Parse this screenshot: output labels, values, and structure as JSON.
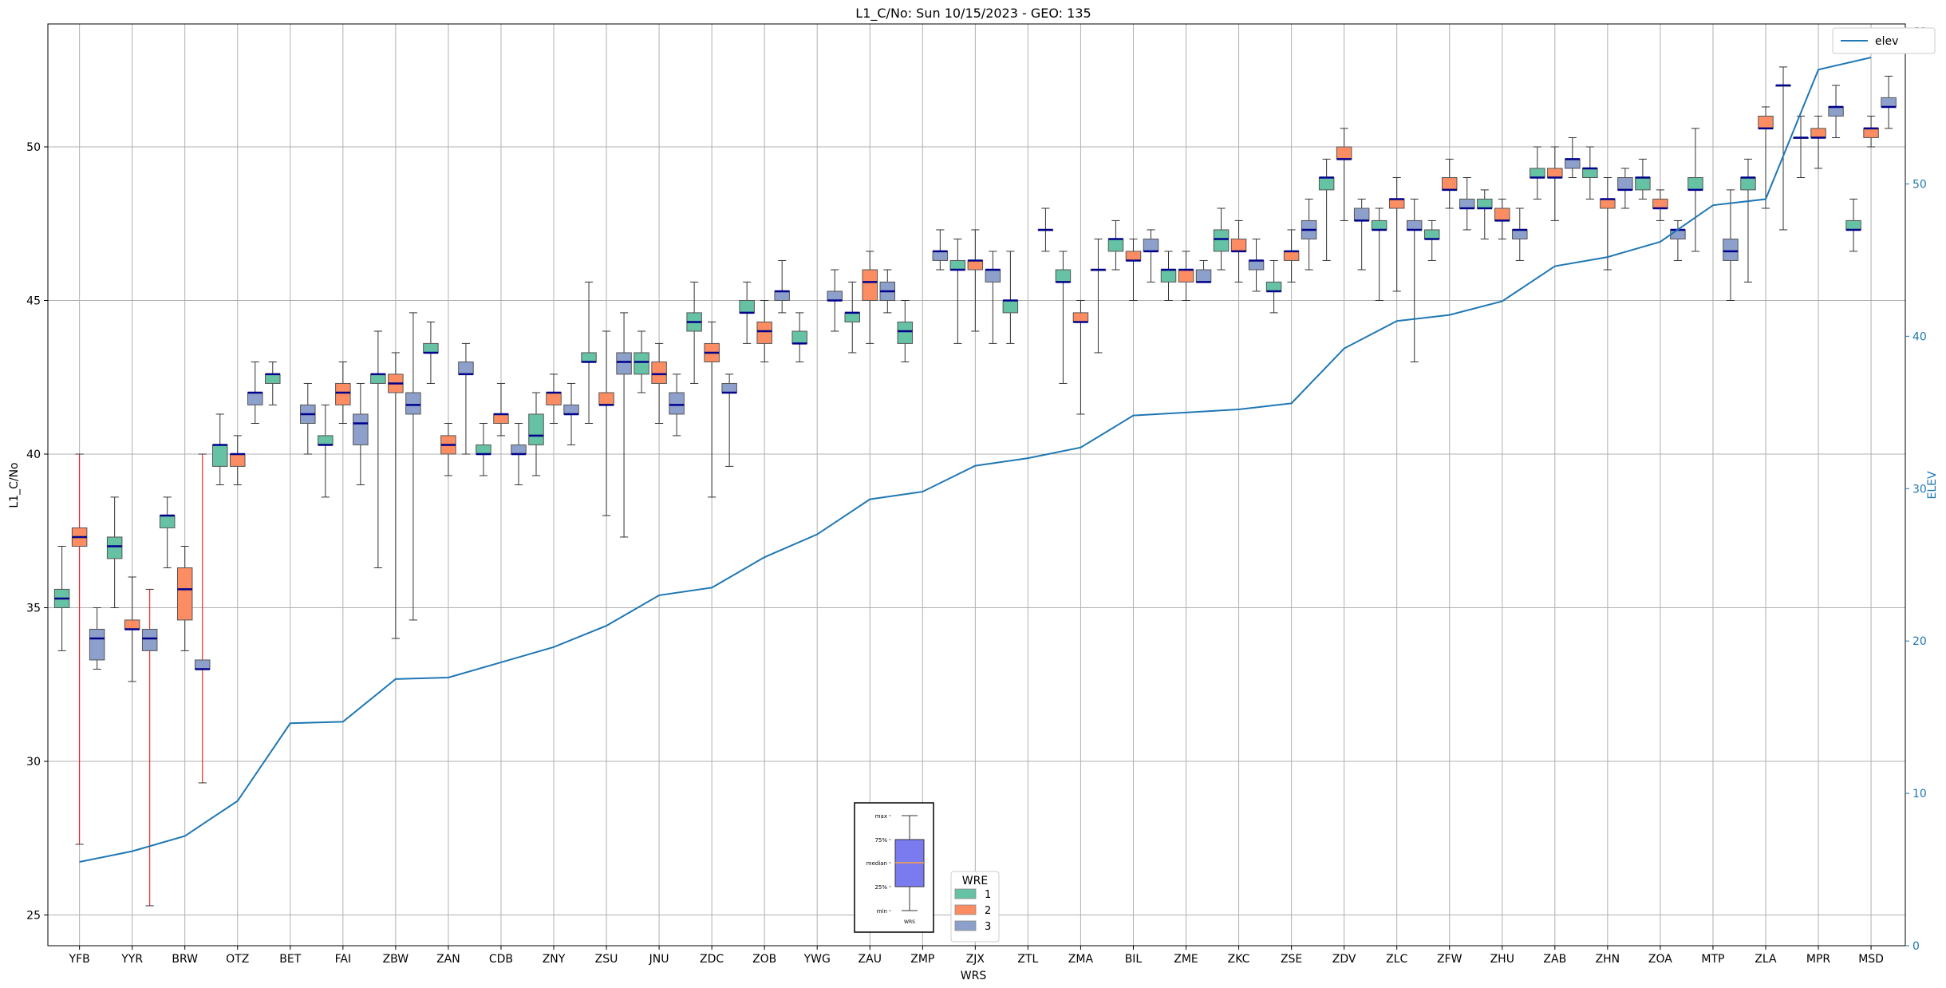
{
  "chart_data": {
    "type": "box",
    "title": "L1_C/No: Sun 10/15/2023 - GEO: 135",
    "xlabel": "WRS",
    "ylabel": "L1_C/No",
    "y2label": "ELEV",
    "ylim": [
      24,
      54
    ],
    "y2lim": [
      0,
      60.5
    ],
    "yticks": [
      25,
      30,
      35,
      40,
      45,
      50
    ],
    "y2ticks": [
      0,
      10,
      20,
      30,
      40,
      50,
      60
    ],
    "grid": true,
    "categories": [
      "YFB",
      "YYR",
      "BRW",
      "OTZ",
      "BET",
      "FAI",
      "ZBW",
      "ZAN",
      "CDB",
      "ZNY",
      "ZSU",
      "JNU",
      "ZDC",
      "ZOB",
      "YWG",
      "ZAU",
      "ZMP",
      "ZJX",
      "ZTL",
      "ZMA",
      "BIL",
      "ZME",
      "ZKC",
      "ZSE",
      "ZDV",
      "ZLC",
      "ZFW",
      "ZHU",
      "ZAB",
      "ZHN",
      "ZOA",
      "MTP",
      "ZLA",
      "MPR",
      "MSD"
    ],
    "legend": {
      "title": "WRE",
      "labels": [
        "1",
        "2",
        "3"
      ],
      "position": "bottom-center"
    },
    "colors": {
      "1": "#66c2a5",
      "2": "#fc8d62",
      "3": "#8da0cb",
      "median": "#00008b",
      "elev": "#1f77b4",
      "red_whisker": "#ff0000"
    },
    "series": [
      {
        "name": "1",
        "boxes": [
          {
            "x": "YFB",
            "min": 33.6,
            "q1": 35.0,
            "median": 35.3,
            "q3": 35.6,
            "max": 37.0
          },
          {
            "x": "YYR",
            "min": 35.0,
            "q1": 36.6,
            "median": 37.0,
            "q3": 37.3,
            "max": 38.6
          },
          {
            "x": "BRW",
            "min": 36.3,
            "q1": 37.6,
            "median": 38.0,
            "q3": 38.0,
            "max": 38.6
          },
          {
            "x": "OTZ",
            "min": 39.0,
            "q1": 39.6,
            "median": 40.3,
            "q3": 40.3,
            "max": 41.3
          },
          {
            "x": "BET",
            "min": 41.6,
            "q1": 42.3,
            "median": 42.6,
            "q3": 42.6,
            "max": 43.0
          },
          {
            "x": "FAI",
            "min": 38.6,
            "q1": 40.3,
            "median": 40.3,
            "q3": 40.6,
            "max": 41.6
          },
          {
            "x": "ZBW",
            "min": 36.3,
            "q1": 42.3,
            "median": 42.6,
            "q3": 42.6,
            "max": 44.0
          },
          {
            "x": "ZAN",
            "min": 42.3,
            "q1": 43.3,
            "median": 43.3,
            "q3": 43.6,
            "max": 44.3
          },
          {
            "x": "CDB",
            "min": 39.3,
            "q1": 40.0,
            "median": 40.0,
            "q3": 40.3,
            "max": 41.0
          },
          {
            "x": "ZNY",
            "min": 39.3,
            "q1": 40.3,
            "median": 40.6,
            "q3": 41.3,
            "max": 42.0
          },
          {
            "x": "ZSU",
            "min": 41.0,
            "q1": 43.0,
            "median": 43.0,
            "q3": 43.3,
            "max": 45.6
          },
          {
            "x": "JNU",
            "min": 42.0,
            "q1": 42.6,
            "median": 43.0,
            "q3": 43.3,
            "max": 44.0
          },
          {
            "x": "ZDC",
            "min": 42.3,
            "q1": 44.0,
            "median": 44.3,
            "q3": 44.6,
            "max": 45.6
          },
          {
            "x": "ZOB",
            "min": 43.6,
            "q1": 44.6,
            "median": 44.6,
            "q3": 45.0,
            "max": 45.6
          },
          {
            "x": "YWG",
            "min": 43.0,
            "q1": 43.6,
            "median": 43.6,
            "q3": 44.0,
            "max": 44.6
          },
          {
            "x": "ZAU",
            "min": 43.3,
            "q1": 44.3,
            "median": 44.6,
            "q3": 44.6,
            "max": 45.6
          },
          {
            "x": "ZMP",
            "min": 43.0,
            "q1": 43.6,
            "median": 44.0,
            "q3": 44.3,
            "max": 45.0
          },
          {
            "x": "ZJX",
            "min": 43.6,
            "q1": 46.0,
            "median": 46.0,
            "q3": 46.3,
            "max": 47.0
          },
          {
            "x": "ZTL",
            "min": 43.6,
            "q1": 44.6,
            "median": 45.0,
            "q3": 45.0,
            "max": 46.6
          },
          {
            "x": "ZMA",
            "min": 42.3,
            "q1": 45.6,
            "median": 45.6,
            "q3": 46.0,
            "max": 46.6
          },
          {
            "x": "BIL",
            "min": 46.0,
            "q1": 46.6,
            "median": 47.0,
            "q3": 47.0,
            "max": 47.6
          },
          {
            "x": "ZME",
            "min": 45.0,
            "q1": 45.6,
            "median": 46.0,
            "q3": 46.0,
            "max": 46.6
          },
          {
            "x": "ZKC",
            "min": 46.0,
            "q1": 46.6,
            "median": 47.0,
            "q3": 47.3,
            "max": 48.0
          },
          {
            "x": "ZSE",
            "min": 44.6,
            "q1": 45.3,
            "median": 45.3,
            "q3": 45.6,
            "max": 46.3
          },
          {
            "x": "ZDV",
            "min": 46.3,
            "q1": 48.6,
            "median": 49.0,
            "q3": 49.0,
            "max": 49.6
          },
          {
            "x": "ZLC",
            "min": 45.0,
            "q1": 47.3,
            "median": 47.3,
            "q3": 47.6,
            "max": 48.0
          },
          {
            "x": "ZFW",
            "min": 46.3,
            "q1": 47.0,
            "median": 47.0,
            "q3": 47.3,
            "max": 47.6
          },
          {
            "x": "ZHU",
            "min": 47.0,
            "q1": 48.0,
            "median": 48.0,
            "q3": 48.3,
            "max": 48.6
          },
          {
            "x": "ZAB",
            "min": 48.3,
            "q1": 49.0,
            "median": 49.0,
            "q3": 49.3,
            "max": 50.0
          },
          {
            "x": "ZHN",
            "min": 48.3,
            "q1": 49.0,
            "median": 49.3,
            "q3": 49.3,
            "max": 50.0
          },
          {
            "x": "ZOA",
            "min": 48.3,
            "q1": 48.6,
            "median": 49.0,
            "q3": 49.0,
            "max": 49.6
          },
          {
            "x": "MTP",
            "min": 46.6,
            "q1": 48.6,
            "median": 48.6,
            "q3": 49.0,
            "max": 50.6
          },
          {
            "x": "ZLA",
            "min": 45.6,
            "q1": 48.6,
            "median": 49.0,
            "q3": 49.0,
            "max": 49.6
          },
          {
            "x": "MPR",
            "min": 49.0,
            "q1": 50.3,
            "median": 50.3,
            "q3": 50.3,
            "max": 51.0
          },
          {
            "x": "MSD",
            "min": 46.6,
            "q1": 47.3,
            "median": 47.3,
            "q3": 47.6,
            "max": 48.3
          }
        ]
      },
      {
        "name": "2",
        "boxes": [
          {
            "x": "YFB",
            "min": 27.3,
            "q1": 37.0,
            "median": 37.3,
            "q3": 37.6,
            "max": 40.0,
            "whisker_color": "red"
          },
          {
            "x": "YYR",
            "min": 32.6,
            "q1": 34.3,
            "median": 34.3,
            "q3": 34.6,
            "max": 36.0
          },
          {
            "x": "BRW",
            "min": 33.6,
            "q1": 34.6,
            "median": 35.6,
            "q3": 36.3,
            "max": 37.0
          },
          {
            "x": "OTZ",
            "min": 39.0,
            "q1": 39.6,
            "median": 40.0,
            "q3": 40.0,
            "max": 40.6
          },
          {
            "x": "FAI",
            "min": 41.0,
            "q1": 41.6,
            "median": 42.0,
            "q3": 42.3,
            "max": 43.0
          },
          {
            "x": "ZBW",
            "min": 34.0,
            "q1": 42.0,
            "median": 42.3,
            "q3": 42.6,
            "max": 43.3
          },
          {
            "x": "ZAN",
            "min": 39.3,
            "q1": 40.0,
            "median": 40.3,
            "q3": 40.6,
            "max": 41.0
          },
          {
            "x": "CDB",
            "min": 40.6,
            "q1": 41.0,
            "median": 41.3,
            "q3": 41.3,
            "max": 42.3
          },
          {
            "x": "ZNY",
            "min": 41.0,
            "q1": 41.6,
            "median": 42.0,
            "q3": 42.0,
            "max": 42.6
          },
          {
            "x": "ZSU",
            "min": 38.0,
            "q1": 41.6,
            "median": 41.6,
            "q3": 42.0,
            "max": 44.0
          },
          {
            "x": "JNU",
            "min": 41.0,
            "q1": 42.3,
            "median": 42.6,
            "q3": 43.0,
            "max": 43.6
          },
          {
            "x": "ZDC",
            "min": 38.6,
            "q1": 43.0,
            "median": 43.3,
            "q3": 43.6,
            "max": 44.3
          },
          {
            "x": "ZOB",
            "min": 43.0,
            "q1": 43.6,
            "median": 44.0,
            "q3": 44.3,
            "max": 45.0
          },
          {
            "x": "ZAU",
            "min": 43.6,
            "q1": 45.0,
            "median": 45.6,
            "q3": 46.0,
            "max": 46.6
          },
          {
            "x": "ZJX",
            "min": 44.0,
            "q1": 46.0,
            "median": 46.3,
            "q3": 46.3,
            "max": 47.3
          },
          {
            "x": "ZMA",
            "min": 41.3,
            "q1": 44.3,
            "median": 44.3,
            "q3": 44.6,
            "max": 45.0
          },
          {
            "x": "BIL",
            "min": 45.0,
            "q1": 46.3,
            "median": 46.3,
            "q3": 46.6,
            "max": 47.0
          },
          {
            "x": "ZME",
            "min": 45.0,
            "q1": 45.6,
            "median": 46.0,
            "q3": 46.0,
            "max": 46.6
          },
          {
            "x": "ZKC",
            "min": 45.6,
            "q1": 46.6,
            "median": 46.6,
            "q3": 47.0,
            "max": 47.6
          },
          {
            "x": "ZSE",
            "min": 45.6,
            "q1": 46.3,
            "median": 46.6,
            "q3": 46.6,
            "max": 47.3
          },
          {
            "x": "ZDV",
            "min": 47.6,
            "q1": 49.6,
            "median": 49.6,
            "q3": 50.0,
            "max": 50.6
          },
          {
            "x": "ZLC",
            "min": 45.3,
            "q1": 48.0,
            "median": 48.3,
            "q3": 48.3,
            "max": 49.0
          },
          {
            "x": "ZFW",
            "min": 48.0,
            "q1": 48.6,
            "median": 48.6,
            "q3": 49.0,
            "max": 49.6
          },
          {
            "x": "ZHU",
            "min": 47.0,
            "q1": 47.6,
            "median": 47.6,
            "q3": 48.0,
            "max": 48.3
          },
          {
            "x": "ZAB",
            "min": 47.6,
            "q1": 49.0,
            "median": 49.0,
            "q3": 49.3,
            "max": 50.0
          },
          {
            "x": "ZHN",
            "min": 46.0,
            "q1": 48.0,
            "median": 48.3,
            "q3": 48.3,
            "max": 49.0
          },
          {
            "x": "ZOA",
            "min": 47.6,
            "q1": 48.0,
            "median": 48.0,
            "q3": 48.3,
            "max": 48.6
          },
          {
            "x": "ZLA",
            "min": 48.0,
            "q1": 50.6,
            "median": 50.6,
            "q3": 51.0,
            "max": 51.3
          },
          {
            "x": "MPR",
            "min": 49.3,
            "q1": 50.3,
            "median": 50.3,
            "q3": 50.6,
            "max": 51.0
          },
          {
            "x": "MSD",
            "min": 50.0,
            "q1": 50.3,
            "median": 50.6,
            "q3": 50.6,
            "max": 51.0
          }
        ]
      },
      {
        "name": "3",
        "boxes": [
          {
            "x": "YFB",
            "min": 33.0,
            "q1": 33.3,
            "median": 34.0,
            "q3": 34.3,
            "max": 35.0
          },
          {
            "x": "YYR",
            "min": 25.3,
            "q1": 33.6,
            "median": 34.0,
            "q3": 34.3,
            "max": 35.6,
            "whisker_color": "red"
          },
          {
            "x": "BRW",
            "min": 29.3,
            "q1": 33.0,
            "median": 33.0,
            "q3": 33.3,
            "max": 40.0,
            "whisker_color": "red"
          },
          {
            "x": "OTZ",
            "min": 41.0,
            "q1": 41.6,
            "median": 42.0,
            "q3": 42.0,
            "max": 43.0
          },
          {
            "x": "BET",
            "min": 40.0,
            "q1": 41.0,
            "median": 41.3,
            "q3": 41.6,
            "max": 42.3
          },
          {
            "x": "FAI",
            "min": 39.0,
            "q1": 40.3,
            "median": 41.0,
            "q3": 41.3,
            "max": 42.3
          },
          {
            "x": "ZBW",
            "min": 34.6,
            "q1": 41.3,
            "median": 41.6,
            "q3": 42.0,
            "max": 44.6
          },
          {
            "x": "ZAN",
            "min": 40.0,
            "q1": 42.6,
            "median": 42.6,
            "q3": 43.0,
            "max": 43.6
          },
          {
            "x": "CDB",
            "min": 39.0,
            "q1": 40.0,
            "median": 40.0,
            "q3": 40.3,
            "max": 41.0
          },
          {
            "x": "ZNY",
            "min": 40.3,
            "q1": 41.3,
            "median": 41.3,
            "q3": 41.6,
            "max": 42.3
          },
          {
            "x": "ZSU",
            "min": 37.3,
            "q1": 42.6,
            "median": 43.0,
            "q3": 43.3,
            "max": 44.6
          },
          {
            "x": "JNU",
            "min": 40.6,
            "q1": 41.3,
            "median": 41.6,
            "q3": 42.0,
            "max": 42.6
          },
          {
            "x": "ZDC",
            "min": 39.6,
            "q1": 42.0,
            "median": 42.0,
            "q3": 42.3,
            "max": 42.6
          },
          {
            "x": "ZOB",
            "min": 44.6,
            "q1": 45.0,
            "median": 45.3,
            "q3": 45.3,
            "max": 46.3
          },
          {
            "x": "YWG",
            "min": 44.0,
            "q1": 45.0,
            "median": 45.0,
            "q3": 45.3,
            "max": 46.0
          },
          {
            "x": "ZAU",
            "min": 44.6,
            "q1": 45.0,
            "median": 45.3,
            "q3": 45.6,
            "max": 46.0
          },
          {
            "x": "ZMP",
            "min": 46.0,
            "q1": 46.3,
            "median": 46.6,
            "q3": 46.6,
            "max": 47.3
          },
          {
            "x": "ZJX",
            "min": 43.6,
            "q1": 45.6,
            "median": 46.0,
            "q3": 46.0,
            "max": 46.6
          },
          {
            "x": "ZTL",
            "min": 46.6,
            "q1": 47.3,
            "median": 47.3,
            "q3": 47.3,
            "max": 48.0
          },
          {
            "x": "ZMA",
            "min": 43.3,
            "q1": 46.0,
            "median": 46.0,
            "q3": 46.0,
            "max": 47.0
          },
          {
            "x": "BIL",
            "min": 45.6,
            "q1": 46.6,
            "median": 46.6,
            "q3": 47.0,
            "max": 47.3
          },
          {
            "x": "ZME",
            "min": 45.6,
            "q1": 45.6,
            "median": 45.6,
            "q3": 46.0,
            "max": 46.3
          },
          {
            "x": "ZKC",
            "min": 45.3,
            "q1": 46.0,
            "median": 46.3,
            "q3": 46.3,
            "max": 47.0
          },
          {
            "x": "ZSE",
            "min": 46.0,
            "q1": 47.0,
            "median": 47.3,
            "q3": 47.6,
            "max": 48.3
          },
          {
            "x": "ZDV",
            "min": 46.0,
            "q1": 47.6,
            "median": 47.6,
            "q3": 48.0,
            "max": 48.3
          },
          {
            "x": "ZLC",
            "min": 43.0,
            "q1": 47.3,
            "median": 47.3,
            "q3": 47.6,
            "max": 48.3
          },
          {
            "x": "ZFW",
            "min": 47.3,
            "q1": 48.0,
            "median": 48.0,
            "q3": 48.3,
            "max": 49.0
          },
          {
            "x": "ZHU",
            "min": 46.3,
            "q1": 47.0,
            "median": 47.3,
            "q3": 47.3,
            "max": 48.0
          },
          {
            "x": "ZAB",
            "min": 49.0,
            "q1": 49.3,
            "median": 49.6,
            "q3": 49.6,
            "max": 50.3
          },
          {
            "x": "ZHN",
            "min": 48.0,
            "q1": 48.6,
            "median": 48.6,
            "q3": 49.0,
            "max": 49.3
          },
          {
            "x": "ZOA",
            "min": 46.3,
            "q1": 47.0,
            "median": 47.3,
            "q3": 47.3,
            "max": 47.6
          },
          {
            "x": "MTP",
            "min": 45.0,
            "q1": 46.3,
            "median": 46.6,
            "q3": 47.0,
            "max": 48.6
          },
          {
            "x": "ZLA",
            "min": 47.3,
            "q1": 52.0,
            "median": 52.0,
            "q3": 52.0,
            "max": 52.6
          },
          {
            "x": "MPR",
            "min": 50.3,
            "q1": 51.0,
            "median": 51.3,
            "q3": 51.3,
            "max": 52.0
          },
          {
            "x": "MSD",
            "min": 50.6,
            "q1": 51.3,
            "median": 51.3,
            "q3": 51.6,
            "max": 52.3
          }
        ]
      },
      {
        "name": "elev",
        "axis": "right",
        "type": "line",
        "values": [
          5.5,
          6.2,
          7.2,
          9.5,
          14.6,
          14.7,
          17.5,
          17.6,
          18.6,
          19.6,
          21.0,
          23.0,
          23.5,
          25.5,
          27.0,
          29.3,
          29.8,
          31.5,
          32.0,
          32.7,
          34.8,
          35.0,
          35.2,
          35.6,
          39.2,
          41.0,
          41.4,
          42.3,
          44.6,
          45.2,
          46.2,
          48.6,
          49.0,
          57.5,
          58.3
        ]
      }
    ],
    "inset_key": {
      "labels": [
        "max",
        "75%",
        "median",
        "25%",
        "min"
      ],
      "xtick": "WRS",
      "box_color": "#7b7bf0",
      "median_color": "#ff9f40"
    }
  }
}
